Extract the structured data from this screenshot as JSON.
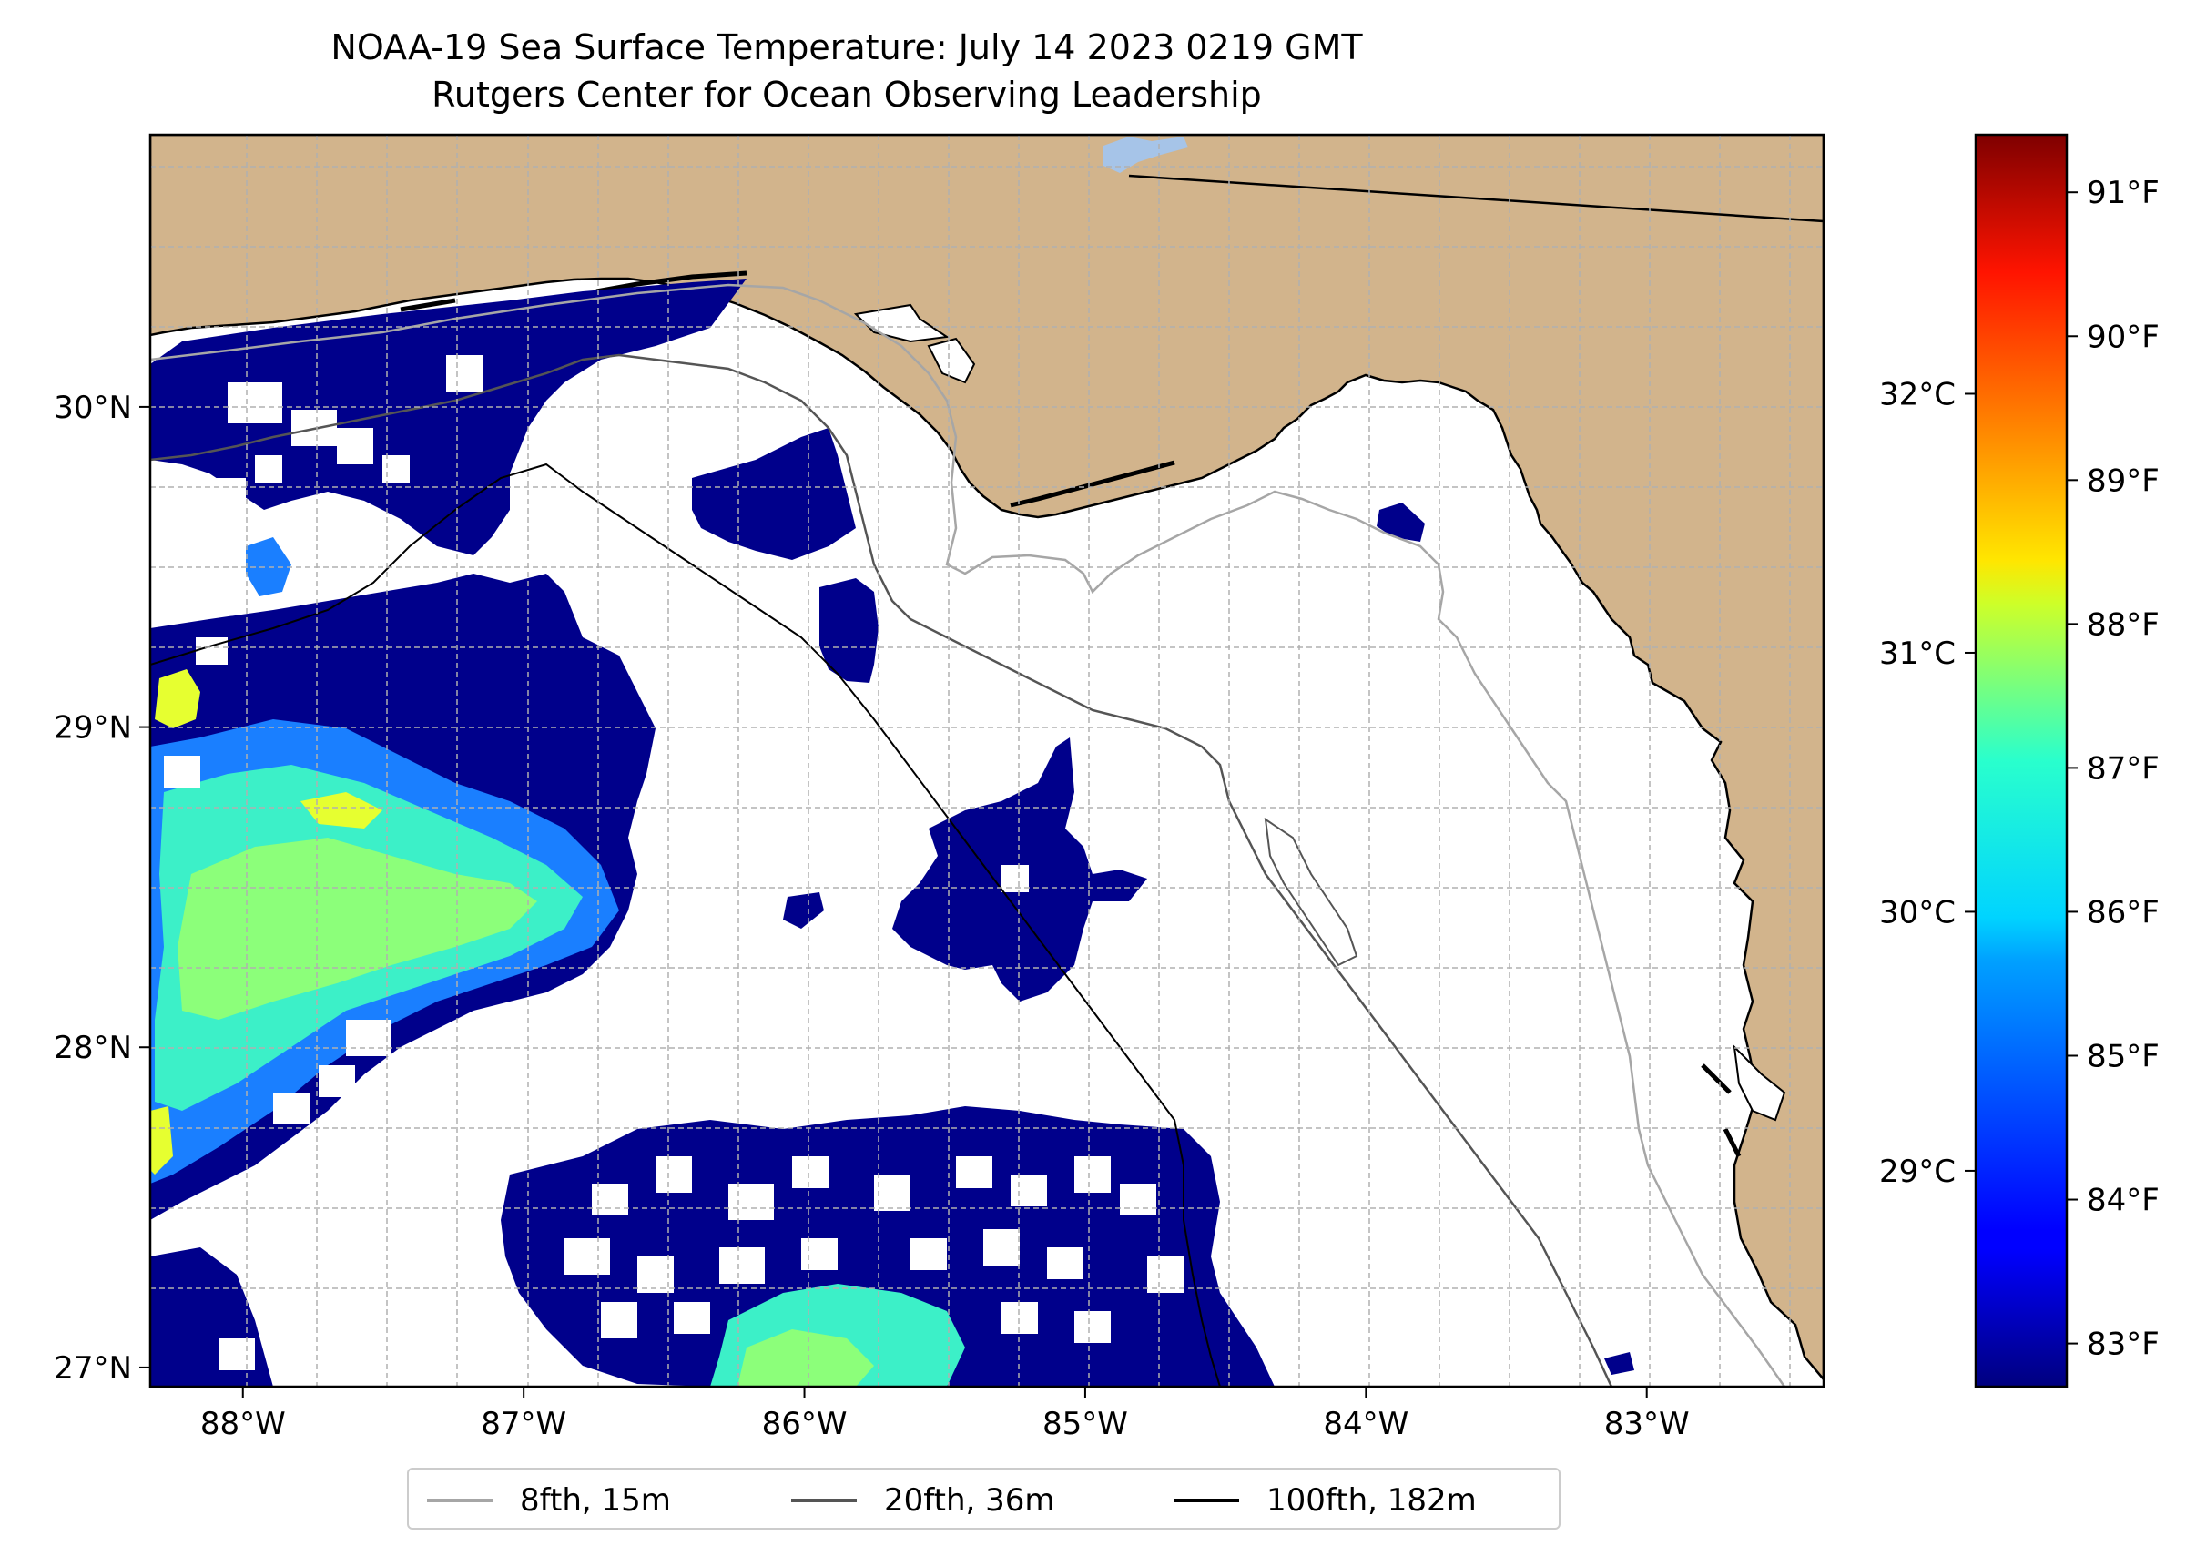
{
  "title": {
    "line1": "NOAA-19 Sea Surface Temperature: July 14 2023 0219 GMT",
    "line2": "Rutgers Center for Ocean Observing Leadership"
  },
  "map": {
    "lon_range": [
      -88.33,
      -82.37
    ],
    "lat_range": [
      26.94,
      30.85
    ],
    "lon_ticks": [
      "88°W",
      "87°W",
      "86°W",
      "85°W",
      "84°W",
      "83°W"
    ],
    "lat_ticks": [
      "27°N",
      "28°N",
      "29°N",
      "30°N"
    ],
    "gridlines": true,
    "colors": {
      "land": "#d2b48c",
      "ocean_no_data": "#ffffff",
      "lake": "#a6c4e8",
      "coastline": "#000000"
    }
  },
  "colorbar": {
    "colormap": "jet",
    "range_f": [
      82.7,
      91.4
    ],
    "fahrenheit_ticks": [
      "83°F",
      "84°F",
      "85°F",
      "86°F",
      "87°F",
      "88°F",
      "89°F",
      "90°F",
      "91°F"
    ],
    "celsius_ticks": [
      "29°C",
      "30°C",
      "31°C",
      "32°C"
    ]
  },
  "legend": {
    "location": "bottom-center",
    "items": [
      {
        "label": "8fth, 15m",
        "color": "#a6a6a6"
      },
      {
        "label": "20fth, 36m",
        "color": "#555555"
      },
      {
        "label": "100fth, 182m",
        "color": "#000000"
      }
    ]
  }
}
